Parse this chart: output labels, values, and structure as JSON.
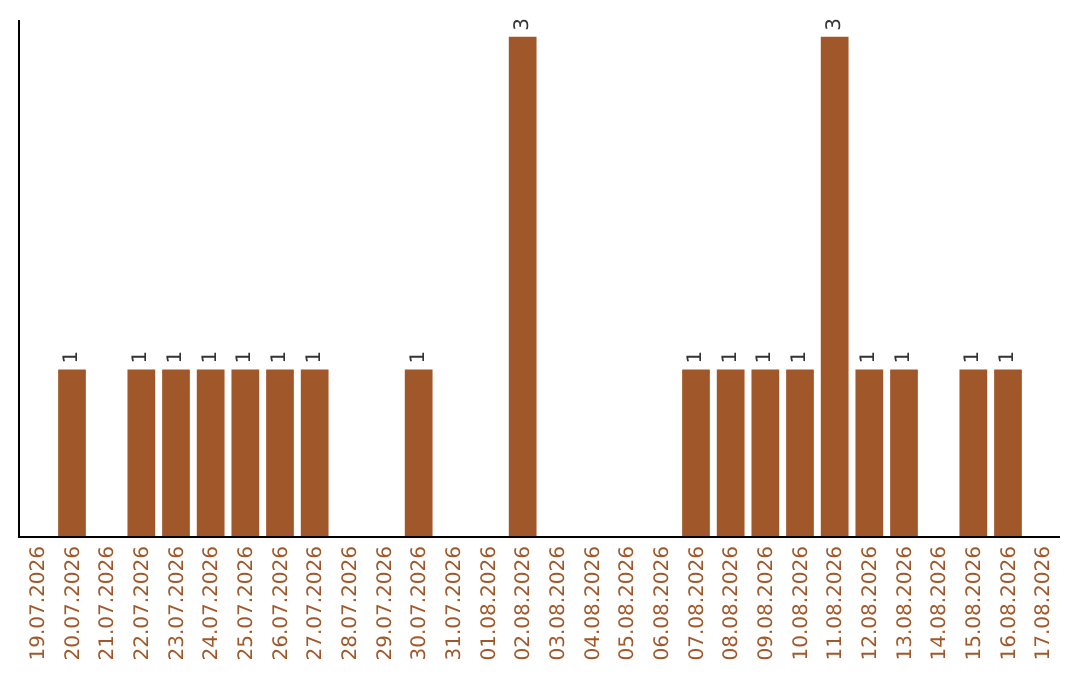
{
  "chart_data": {
    "type": "bar",
    "categories": [
      "19.07.2026",
      "20.07.2026",
      "21.07.2026",
      "22.07.2026",
      "23.07.2026",
      "24.07.2026",
      "25.07.2026",
      "26.07.2026",
      "27.07.2026",
      "28.07.2026",
      "29.07.2026",
      "30.07.2026",
      "31.07.2026",
      "01.08.2026",
      "02.08.2026",
      "03.08.2026",
      "04.08.2026",
      "05.08.2026",
      "06.08.2026",
      "07.08.2026",
      "08.08.2026",
      "09.08.2026",
      "10.08.2026",
      "11.08.2026",
      "12.08.2026",
      "13.08.2026",
      "14.08.2026",
      "15.08.2026",
      "16.08.2026",
      "17.08.2026"
    ],
    "values": [
      0,
      1,
      0,
      1,
      1,
      1,
      1,
      1,
      1,
      0,
      0,
      1,
      0,
      0,
      3,
      0,
      0,
      0,
      0,
      1,
      1,
      1,
      1,
      3,
      1,
      1,
      0,
      1,
      1,
      0
    ],
    "value_labels": [
      null,
      "1",
      null,
      "1",
      "1",
      "1",
      "1",
      "1",
      "1",
      null,
      null,
      "1",
      null,
      null,
      "3",
      null,
      null,
      null,
      null,
      "1",
      "1",
      "1",
      "1",
      "3",
      "1",
      "1",
      null,
      "1",
      "1",
      null
    ],
    "color": "#a0582a",
    "ylim": [
      0,
      3.1
    ],
    "tick_labels": "x",
    "legend": false
  }
}
